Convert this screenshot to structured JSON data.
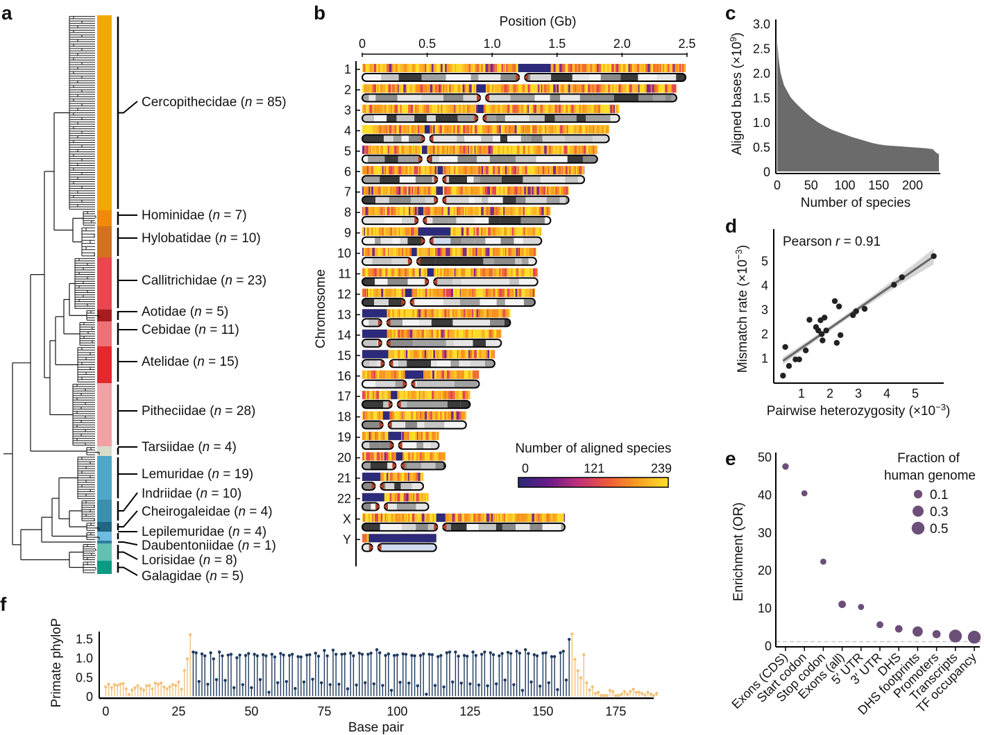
{
  "panel_letters": [
    "a",
    "b",
    "c",
    "d",
    "e",
    "f"
  ],
  "chart_data": [
    {
      "panel": "a",
      "type": "tree",
      "count_symbol": "n",
      "families": [
        {
          "name": "Cercopithecidae",
          "n": 85,
          "color": "#f1a900"
        },
        {
          "name": "Hominidae",
          "n": 7,
          "color": "#f08a0c"
        },
        {
          "name": "Hylobatidae",
          "n": 10,
          "color": "#d2711f"
        },
        {
          "name": "Callitrichidae",
          "n": 23,
          "color": "#e8474f"
        },
        {
          "name": "Aotidae",
          "n": 5,
          "color": "#a51d1f"
        },
        {
          "name": "Cebidae",
          "n": 11,
          "color": "#ee7078"
        },
        {
          "name": "Atelidae",
          "n": 15,
          "color": "#e3282e"
        },
        {
          "name": "Pitheciidae",
          "n": 28,
          "color": "#f2a1a5"
        },
        {
          "name": "Tarsiidae",
          "n": 4,
          "color": "#d7dccb"
        },
        {
          "name": "Lemuridae",
          "n": 19,
          "color": "#4ea6c8"
        },
        {
          "name": "Indriidae",
          "n": 10,
          "color": "#3a8fad"
        },
        {
          "name": "Cheirogaleidae",
          "n": 4,
          "color": "#1f6680"
        },
        {
          "name": "Lepilemuridae",
          "n": 4,
          "color": "#6ebbe0"
        },
        {
          "name": "Daubentoniidae",
          "n": 1,
          "color": "#2c7d9c"
        },
        {
          "name": "Lorisidae",
          "n": 8,
          "color": "#62c1b0"
        },
        {
          "name": "Galagidae",
          "n": 5,
          "color": "#0b9a84"
        }
      ]
    },
    {
      "panel": "b",
      "type": "heatmap",
      "xlabel": "Position (Gb)",
      "ylabel": "Chromosome",
      "xlim": [
        0,
        2.5
      ],
      "xticks": [
        "0",
        "0.5",
        "1.0",
        "1.5",
        "2.0",
        "2.5"
      ],
      "xtick_values": [
        0,
        0.5,
        1.0,
        1.5,
        2.0,
        2.5
      ],
      "chromosomes": [
        {
          "name": "1",
          "length": 2.49,
          "centromere": 1.23,
          "low": [
            [
              1.2,
              1.45
            ]
          ]
        },
        {
          "name": "2",
          "length": 2.42,
          "centromere": 0.93,
          "low": [
            [
              0.88,
              0.95
            ]
          ]
        },
        {
          "name": "3",
          "length": 1.98,
          "centromere": 0.91,
          "low": [
            [
              0.89,
              0.93
            ]
          ]
        },
        {
          "name": "4",
          "length": 1.9,
          "centromere": 0.5,
          "low": [
            [
              0.48,
              0.52
            ]
          ]
        },
        {
          "name": "5",
          "length": 1.81,
          "centromere": 0.48,
          "low": [
            [
              0.46,
              0.5
            ]
          ]
        },
        {
          "name": "6",
          "length": 1.71,
          "centromere": 0.6,
          "low": [
            [
              0.58,
              0.62
            ]
          ]
        },
        {
          "name": "7",
          "length": 1.59,
          "centromere": 0.6,
          "low": [
            [
              0.57,
              0.62
            ]
          ]
        },
        {
          "name": "8",
          "length": 1.45,
          "centromere": 0.45,
          "low": [
            [
              0.43,
              0.47
            ]
          ]
        },
        {
          "name": "9",
          "length": 1.38,
          "centromere": 0.5,
          "low": [
            [
              0.43,
              0.68
            ]
          ]
        },
        {
          "name": "10",
          "length": 1.34,
          "centromere": 0.4,
          "low": [
            [
              0.38,
              0.42
            ]
          ]
        },
        {
          "name": "11",
          "length": 1.35,
          "centromere": 0.53,
          "low": [
            [
              0.5,
              0.55
            ]
          ]
        },
        {
          "name": "12",
          "length": 1.33,
          "centromere": 0.35,
          "low": [
            [
              0.33,
              0.38
            ]
          ]
        },
        {
          "name": "13",
          "length": 1.14,
          "centromere": 0.17,
          "low": [
            [
              0,
              0.19
            ]
          ]
        },
        {
          "name": "14",
          "length": 1.07,
          "centromere": 0.17,
          "low": [
            [
              0,
              0.19
            ]
          ]
        },
        {
          "name": "15",
          "length": 1.02,
          "centromere": 0.19,
          "low": [
            [
              0,
              0.2
            ]
          ]
        },
        {
          "name": "16",
          "length": 0.9,
          "centromere": 0.36,
          "low": [
            [
              0.33,
              0.47
            ]
          ]
        },
        {
          "name": "17",
          "length": 0.83,
          "centromere": 0.25,
          "low": [
            [
              0.22,
              0.27
            ]
          ]
        },
        {
          "name": "18",
          "length": 0.8,
          "centromere": 0.18,
          "low": [
            [
              0.16,
              0.21
            ]
          ]
        },
        {
          "name": "19",
          "length": 0.59,
          "centromere": 0.26,
          "low": [
            [
              0.2,
              0.3
            ]
          ]
        },
        {
          "name": "20",
          "length": 0.64,
          "centromere": 0.28,
          "low": [
            [
              0.26,
              0.31
            ]
          ]
        },
        {
          "name": "21",
          "length": 0.47,
          "centromere": 0.12,
          "low": [
            [
              0,
              0.14
            ]
          ]
        },
        {
          "name": "22",
          "length": 0.51,
          "centromere": 0.15,
          "low": [
            [
              0,
              0.17
            ]
          ]
        },
        {
          "name": "X",
          "length": 1.56,
          "centromere": 0.6,
          "low": [
            [
              0.57,
              0.64
            ]
          ]
        },
        {
          "name": "Y",
          "length": 0.57,
          "centromere": 0.1,
          "low": [
            [
              0.05,
              0.57
            ]
          ]
        }
      ],
      "colorbar": {
        "title": "Number of aligned species",
        "ticks": [
          "0",
          "121",
          "239"
        ],
        "tick_values": [
          0,
          121,
          239
        ],
        "range": [
          0,
          239
        ],
        "colors": [
          "#2a2a7a",
          "#6a1b8a",
          "#c0307a",
          "#ef5a3a",
          "#f8a020",
          "#ffe12a"
        ]
      }
    },
    {
      "panel": "c",
      "type": "area",
      "xlabel": "Number of species",
      "ylabel": "Aligned bases (×10",
      "ylabel_exp": "9",
      "ylabel_end": ")",
      "xlim": [
        0,
        240
      ],
      "ylim": [
        0,
        3.0
      ],
      "xticks": [
        "0",
        "50",
        "100",
        "150",
        "200"
      ],
      "xtick_values": [
        0,
        50,
        100,
        150,
        200
      ],
      "yticks": [
        "0",
        "0.5",
        "1.0",
        "1.5",
        "2.0",
        "2.5",
        "3.0"
      ],
      "ytick_values": [
        0,
        0.5,
        1.0,
        1.5,
        2.0,
        2.5,
        3.0
      ],
      "x": [
        0,
        2,
        5,
        10,
        20,
        30,
        40,
        50,
        60,
        70,
        80,
        90,
        100,
        110,
        120,
        130,
        140,
        150,
        160,
        170,
        180,
        190,
        200,
        210,
        220,
        230,
        235,
        239
      ],
      "y": [
        2.65,
        2.3,
        2.0,
        1.75,
        1.5,
        1.35,
        1.22,
        1.1,
        1.0,
        0.92,
        0.85,
        0.8,
        0.75,
        0.7,
        0.66,
        0.62,
        0.58,
        0.55,
        0.53,
        0.52,
        0.51,
        0.5,
        0.49,
        0.48,
        0.47,
        0.45,
        0.38,
        0.35
      ],
      "color": "#6b6b6b"
    },
    {
      "panel": "d",
      "type": "scatter",
      "annotation_prefix": "Pearson ",
      "annotation_symbol": "r",
      "annotation_value": " = 0.91",
      "xlabel": "Pairwise heterozygosity (×10",
      "ylabel": "Mismatch rate (×10",
      "label_exp": "−3",
      "label_end": ")",
      "xticks": [
        "1",
        "2",
        "3",
        "4",
        "5"
      ],
      "xtick_values": [
        1,
        2,
        3,
        4,
        5
      ],
      "yticks": [
        "1",
        "2",
        "3",
        "4",
        "5"
      ],
      "ytick_values": [
        1,
        2,
        3,
        4,
        5
      ],
      "xlim": [
        0,
        6
      ],
      "ylim": [
        0,
        6
      ],
      "x": [
        0.35,
        0.43,
        0.56,
        0.79,
        0.92,
        1.15,
        1.28,
        1.51,
        1.59,
        1.67,
        1.71,
        1.74,
        1.81,
        1.87,
        2.17,
        2.24,
        2.32,
        2.37,
        2.81,
        2.92,
        3.22,
        4.25,
        4.53,
        5.65
      ],
      "y": [
        0.27,
        1.45,
        0.67,
        0.94,
        0.94,
        1.31,
        2.57,
        2.27,
        2.13,
        2.55,
        1.98,
        1.72,
        2.66,
        2.13,
        3.34,
        1.62,
        3.12,
        1.94,
        2.76,
        2.92,
        3.02,
        4.01,
        4.32,
        5.19
      ],
      "fit": {
        "x": [
          0.35,
          5.65
        ],
        "y": [
          0.88,
          5.18
        ]
      },
      "point_color": "#222222",
      "fit_color": "#666666"
    },
    {
      "panel": "e",
      "type": "scatter",
      "ylabel": "Enrichment (OR)",
      "ylim": [
        0,
        50
      ],
      "yticks": [
        "0",
        "10",
        "20",
        "30",
        "40",
        "50"
      ],
      "ytick_values": [
        0,
        10,
        20,
        30,
        40,
        50
      ],
      "categories": [
        "Exons (CDS)",
        "Start codon",
        "Stop codon",
        "Exons (all)",
        "5′ UTR",
        "3′ UTR",
        "DHS",
        "DHS footprints",
        "Promoters",
        "Transcripts",
        "TF occupancy"
      ],
      "values": [
        47.4,
        40.3,
        22.2,
        10.9,
        10.2,
        5.5,
        4.4,
        3.7,
        3.0,
        2.5,
        2.2
      ],
      "fraction": [
        0.02,
        0.01,
        0.01,
        0.05,
        0.01,
        0.03,
        0.05,
        0.22,
        0.08,
        0.5,
        0.5
      ],
      "reference_line": 1,
      "legend": {
        "title_1": "Fraction of",
        "title_2": "human genome",
        "values": [
          "0.1",
          "0.3",
          "0.5"
        ],
        "sizes": [
          0.1,
          0.3,
          0.5
        ],
        "placement": "top-right"
      },
      "color": "#6b4f78"
    },
    {
      "panel": "f",
      "type": "lollipop",
      "xlabel": "Base pair",
      "ylabel": "Primate phyloP",
      "xlim": [
        0,
        189
      ],
      "ylim": [
        0,
        1.7
      ],
      "xticks": [
        "0",
        "25",
        "50",
        "75",
        "100",
        "125",
        "150",
        "175"
      ],
      "xtick_values": [
        0,
        25,
        50,
        75,
        100,
        125,
        150,
        175
      ],
      "yticks": [
        "0",
        "0.5",
        "1.0",
        "1.5"
      ],
      "ytick_values": [
        0,
        0.5,
        1.0,
        1.5
      ],
      "highlight_range": [
        30,
        159
      ],
      "colors": {
        "flank": "#f2c27a",
        "highlight": "#1f3a5f"
      },
      "values": [
        0.24,
        0.31,
        0.22,
        0.3,
        0.28,
        0.31,
        0.33,
        0.19,
        0.04,
        0.16,
        0.22,
        0.27,
        0.2,
        0.16,
        0.27,
        0.28,
        0.19,
        0.34,
        0.31,
        0.34,
        0.24,
        0.19,
        0.24,
        0.3,
        0.28,
        0.37,
        0.18,
        0.67,
        0.97,
        1.6,
        1.15,
        1.13,
        0.38,
        1.1,
        1.05,
        0.31,
        1.13,
        0.97,
        0.43,
        1.15,
        1.05,
        0.41,
        1.07,
        1.09,
        0.22,
        1.0,
        1.07,
        0.3,
        1.06,
        1.11,
        0.22,
        1.09,
        1.05,
        0.43,
        1.08,
        1.05,
        0.1,
        1.09,
        1.02,
        0.35,
        1.11,
        1.07,
        0.38,
        1.06,
        1.09,
        0.2,
        1.03,
        1.02,
        0.37,
        1.07,
        1.08,
        0.44,
        1.12,
        1.04,
        0.35,
        1.19,
        1.05,
        0.3,
        1.2,
        1.09,
        0.31,
        1.09,
        1.1,
        0.19,
        1.12,
        1.05,
        0.29,
        1.12,
        1.09,
        0.35,
        1.09,
        1.12,
        0.32,
        1.21,
        1.13,
        0.28,
        1.06,
        1.1,
        0.15,
        1.06,
        1.07,
        0.36,
        1.1,
        1.09,
        0.34,
        1.06,
        1.05,
        0.27,
        1.06,
        1.1,
        0.05,
        1.09,
        1.08,
        0.28,
        1.03,
        1.06,
        0.24,
        1.13,
        1.15,
        0.37,
        1.15,
        1.04,
        0.34,
        1.06,
        1.04,
        0.32,
        1.15,
        1.06,
        0.29,
        1.09,
        1.15,
        0.27,
        1.13,
        1.08,
        0.32,
        1.05,
        1.11,
        0.42,
        1.14,
        1.11,
        0.3,
        1.17,
        1.12,
        0.15,
        1.21,
        1.11,
        0.37,
        1.08,
        1.05,
        0.26,
        1.12,
        1.13,
        0.35,
        1.03,
        1.03,
        0.17,
        1.13,
        1.17,
        0.42,
        1.48,
        1.62,
        0.96,
        0.66,
        0.48,
        1.08,
        0.35,
        0.16,
        0.24,
        0.07,
        0.1,
        0.02,
        0.02,
        0.02,
        0.15,
        0.12,
        0.02,
        0.02,
        0.05,
        0.12,
        0.05,
        0.12,
        0.18,
        0.1,
        0.1,
        0.07,
        0.03,
        0.1,
        0.05,
        0.02,
        0.07
      ]
    }
  ]
}
